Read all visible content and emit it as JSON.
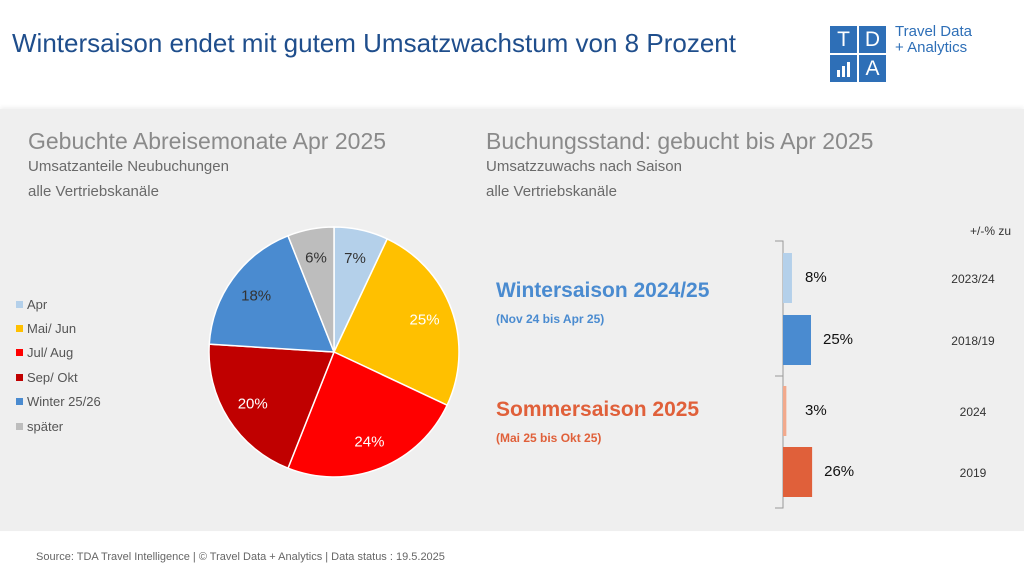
{
  "header": {
    "title": "Wintersaison endet mit gutem Umsatzwachstum von 8 Prozent",
    "logo_letters": [
      "T",
      "D",
      "",
      "A"
    ],
    "brand_line1": "Travel Data",
    "brand_line2": "+ Analytics"
  },
  "left": {
    "heading": "Gebuchte Abreisemonate Apr 2025",
    "sub1": "Umsatzanteile Neubuchungen",
    "sub2": "alle Vertriebskanäle"
  },
  "right": {
    "heading": "Buchungsstand: gebucht bis Apr 2025",
    "sub1": "Umsatzzuwachs nach Saison",
    "sub2": "alle Vertriebskanäle",
    "compare_header": "+/-% zu",
    "winter_title": "Wintersaison 2024/25",
    "winter_sub": "(Nov 24 bis Apr 25)",
    "summer_title": "Sommersaison 2025",
    "summer_sub": "(Mai 25 bis Okt 25)"
  },
  "chart_data": [
    {
      "type": "pie",
      "title": "Gebuchte Abreisemonate Apr 2025",
      "labels": [
        "Apr",
        "Mai/ Jun",
        "Jul/ Aug",
        "Sep/ Okt",
        "Winter 25/26",
        "später"
      ],
      "values": [
        7,
        25,
        24,
        20,
        18,
        6
      ],
      "value_labels": [
        "7%",
        "25%",
        "24%",
        "20%",
        "18%",
        "6%"
      ],
      "colors": [
        "#b4d0ea",
        "#ffc000",
        "#ff0000",
        "#c00000",
        "#4a8bd0",
        "#bdbdbd"
      ],
      "legend_position": "left"
    },
    {
      "type": "bar",
      "orientation": "horizontal",
      "title": "Buchungsstand: gebucht bis Apr 2025",
      "categories": [
        "2023/24",
        "2018/19",
        "2024",
        "2019"
      ],
      "values": [
        8,
        25,
        3,
        26
      ],
      "value_labels": [
        "8%",
        "25%",
        "3%",
        "26%"
      ],
      "groups": [
        "Wintersaison 2024/25",
        "Wintersaison 2024/25",
        "Sommersaison 2025",
        "Sommersaison 2025"
      ],
      "colors": [
        "#b4d0ea",
        "#4a8bd0",
        "#f2a98c",
        "#e0603a"
      ],
      "unit": "%"
    }
  ],
  "colors": {
    "title": "#1f4e8c",
    "winter": "#4a8bd0",
    "summer": "#e0603a",
    "logo": "#2e6fb7"
  },
  "footer": {
    "text": "Source: TDA Travel Intelligence   |   © Travel Data + Analytics   | Data status : 19.5.2025"
  }
}
